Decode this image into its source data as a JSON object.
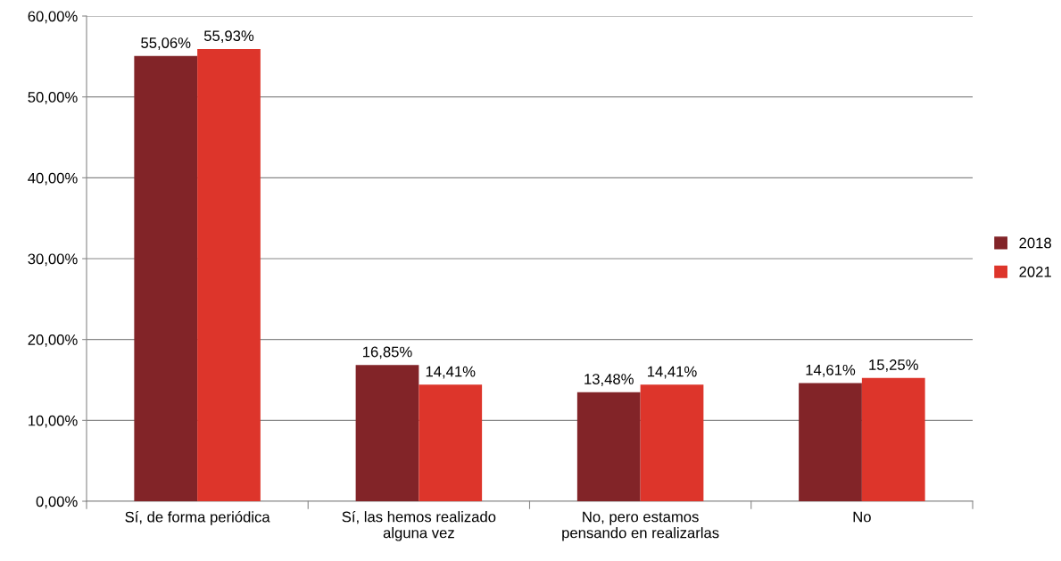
{
  "chart_data": {
    "type": "bar",
    "categories": [
      "Sí, de forma periódica",
      "Sí, las hemos realizado\nalguna vez",
      "No, pero estamos\npensando en realizarlas",
      "No"
    ],
    "series": [
      {
        "name": "2018",
        "color": "#822428",
        "values": [
          55.06,
          16.85,
          13.48,
          14.61
        ],
        "value_labels": [
          "55,06%",
          "16,85%",
          "13,48%",
          "14,61%"
        ]
      },
      {
        "name": "2021",
        "color": "#dd352b",
        "values": [
          55.93,
          14.41,
          14.41,
          15.25
        ],
        "value_labels": [
          "55,93%",
          "14,41%",
          "14,41%",
          "15,25%"
        ]
      }
    ],
    "ylim": [
      0,
      60
    ],
    "yticks": [
      {
        "value": 0,
        "label": "0,00%"
      },
      {
        "value": 10,
        "label": "10,00%"
      },
      {
        "value": 20,
        "label": "20,00%"
      },
      {
        "value": 30,
        "label": "30,00%"
      },
      {
        "value": 40,
        "label": "40,00%"
      },
      {
        "value": 50,
        "label": "50,00%"
      },
      {
        "value": 60,
        "label": "60,00%"
      }
    ],
    "grid": "y",
    "legend": "right"
  }
}
